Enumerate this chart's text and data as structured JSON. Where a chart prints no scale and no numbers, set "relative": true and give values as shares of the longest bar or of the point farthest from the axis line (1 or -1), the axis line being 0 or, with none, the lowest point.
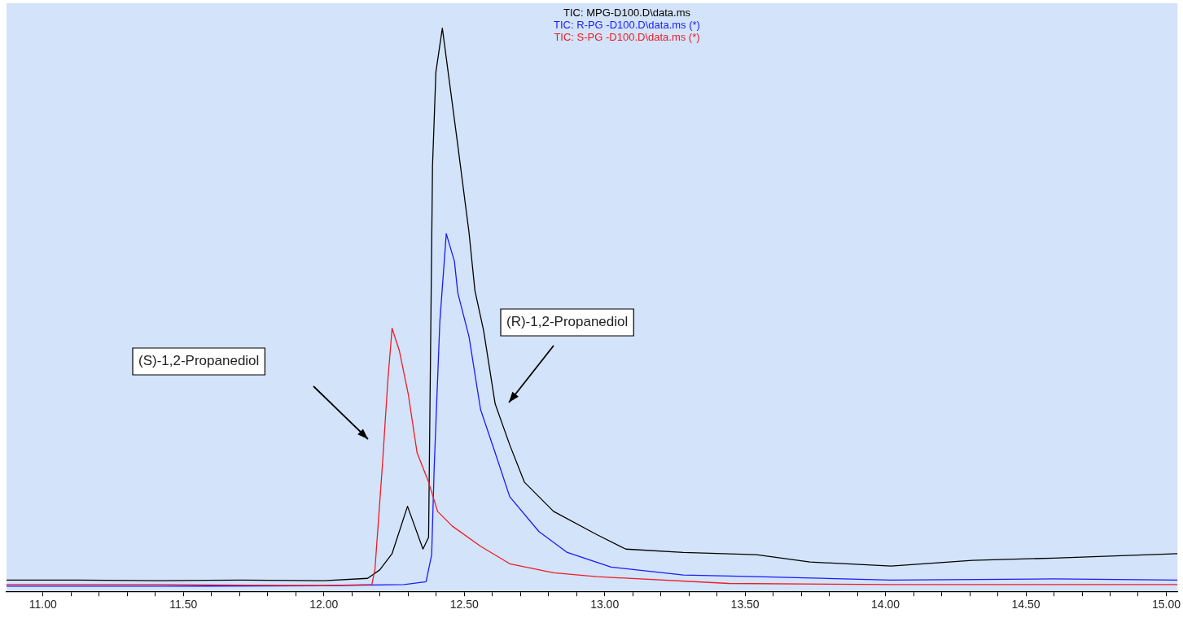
{
  "chart_data": {
    "type": "line",
    "relative": true,
    "xlim": [
      10.87,
      15.04
    ],
    "xticks": [
      {
        "value": 11,
        "label": "11.00"
      },
      {
        "value": 11.1,
        "label": null
      },
      {
        "value": 11.2,
        "label": null
      },
      {
        "value": 11.3,
        "label": null
      },
      {
        "value": 11.4,
        "label": null
      },
      {
        "value": 11.5,
        "label": "11.50"
      },
      {
        "value": 11.6,
        "label": null
      },
      {
        "value": 11.7,
        "label": null
      },
      {
        "value": 11.8,
        "label": null
      },
      {
        "value": 11.9,
        "label": null
      },
      {
        "value": 12,
        "label": "12.00"
      },
      {
        "value": 12.1,
        "label": null
      },
      {
        "value": 12.2,
        "label": null
      },
      {
        "value": 12.3,
        "label": null
      },
      {
        "value": 12.4,
        "label": null
      },
      {
        "value": 12.5,
        "label": "12.50"
      },
      {
        "value": 12.6,
        "label": null
      },
      {
        "value": 12.7,
        "label": null
      },
      {
        "value": 12.8,
        "label": null
      },
      {
        "value": 12.9,
        "label": null
      },
      {
        "value": 13,
        "label": "13.00"
      },
      {
        "value": 13.1,
        "label": null
      },
      {
        "value": 13.2,
        "label": null
      },
      {
        "value": 13.3,
        "label": null
      },
      {
        "value": 13.4,
        "label": null
      },
      {
        "value": 13.5,
        "label": "13.50"
      },
      {
        "value": 13.6,
        "label": null
      },
      {
        "value": 13.7,
        "label": null
      },
      {
        "value": 13.8,
        "label": null
      },
      {
        "value": 13.9,
        "label": null
      },
      {
        "value": 14,
        "label": "14.00"
      },
      {
        "value": 14.1,
        "label": null
      },
      {
        "value": 14.2,
        "label": null
      },
      {
        "value": 14.3,
        "label": null
      },
      {
        "value": 14.4,
        "label": null
      },
      {
        "value": 14.5,
        "label": "14.50"
      },
      {
        "value": 14.6,
        "label": null
      },
      {
        "value": 14.7,
        "label": null
      },
      {
        "value": 14.8,
        "label": null
      },
      {
        "value": 14.9,
        "label": null
      },
      {
        "value": 15,
        "label": "15.00"
      }
    ],
    "series": [
      {
        "name": "TIC: MPG-D100.D\\data.ms",
        "color": "#000000",
        "x": [
          10.87,
          11.13,
          11.419,
          11.708,
          12.0,
          12.156,
          12.199,
          12.243,
          12.298,
          12.353,
          12.373,
          12.387,
          12.399,
          12.422,
          12.477,
          12.517,
          12.538,
          12.569,
          12.61,
          12.662,
          12.714,
          12.818,
          12.971,
          13.075,
          13.28,
          13.54,
          13.731,
          14.02,
          14.309,
          14.598,
          15.04
        ],
        "values": [
          0.02,
          0.02,
          0.019,
          0.02,
          0.019,
          0.023,
          0.038,
          0.067,
          0.151,
          0.075,
          0.096,
          0.755,
          0.922,
          1.0,
          0.792,
          0.637,
          0.534,
          0.463,
          0.333,
          0.26,
          0.194,
          0.142,
          0.101,
          0.075,
          0.069,
          0.065,
          0.052,
          0.045,
          0.055,
          0.059,
          0.067
        ]
      },
      {
        "name": "TIC: R-PG -D100.D\\data.ms (*)",
        "color": "#1a1aff",
        "x": [
          10.87,
          11.419,
          12.0,
          12.286,
          12.364,
          12.384,
          12.393,
          12.413,
          12.436,
          12.465,
          12.477,
          12.517,
          12.558,
          12.61,
          12.662,
          12.766,
          12.867,
          13.023,
          13.28,
          13.54,
          14.02,
          14.598,
          15.04
        ],
        "values": [
          0.009,
          0.009,
          0.01,
          0.012,
          0.017,
          0.065,
          0.22,
          0.478,
          0.635,
          0.586,
          0.53,
          0.452,
          0.323,
          0.246,
          0.168,
          0.106,
          0.069,
          0.043,
          0.029,
          0.026,
          0.02,
          0.022,
          0.02
        ]
      },
      {
        "name": "TIC: S-PG -D100.D\\data.ms (*)",
        "color": "#ee1c24",
        "x": [
          10.87,
          11.419,
          12.0,
          12.171,
          12.182,
          12.208,
          12.228,
          12.243,
          12.269,
          12.301,
          12.332,
          12.373,
          12.405,
          12.457,
          12.558,
          12.662,
          12.818,
          12.971,
          13.442,
          14.02,
          15.04
        ],
        "values": [
          0.012,
          0.012,
          0.01,
          0.012,
          0.039,
          0.22,
          0.375,
          0.467,
          0.427,
          0.349,
          0.246,
          0.194,
          0.142,
          0.116,
          0.08,
          0.049,
          0.033,
          0.026,
          0.014,
          0.012,
          0.012
        ]
      }
    ],
    "annotations": [
      "(S)-1,2-Propanediol",
      "(R)-1,2-Propanediol"
    ],
    "grid": false,
    "marker": "none",
    "line_style": "solid"
  }
}
